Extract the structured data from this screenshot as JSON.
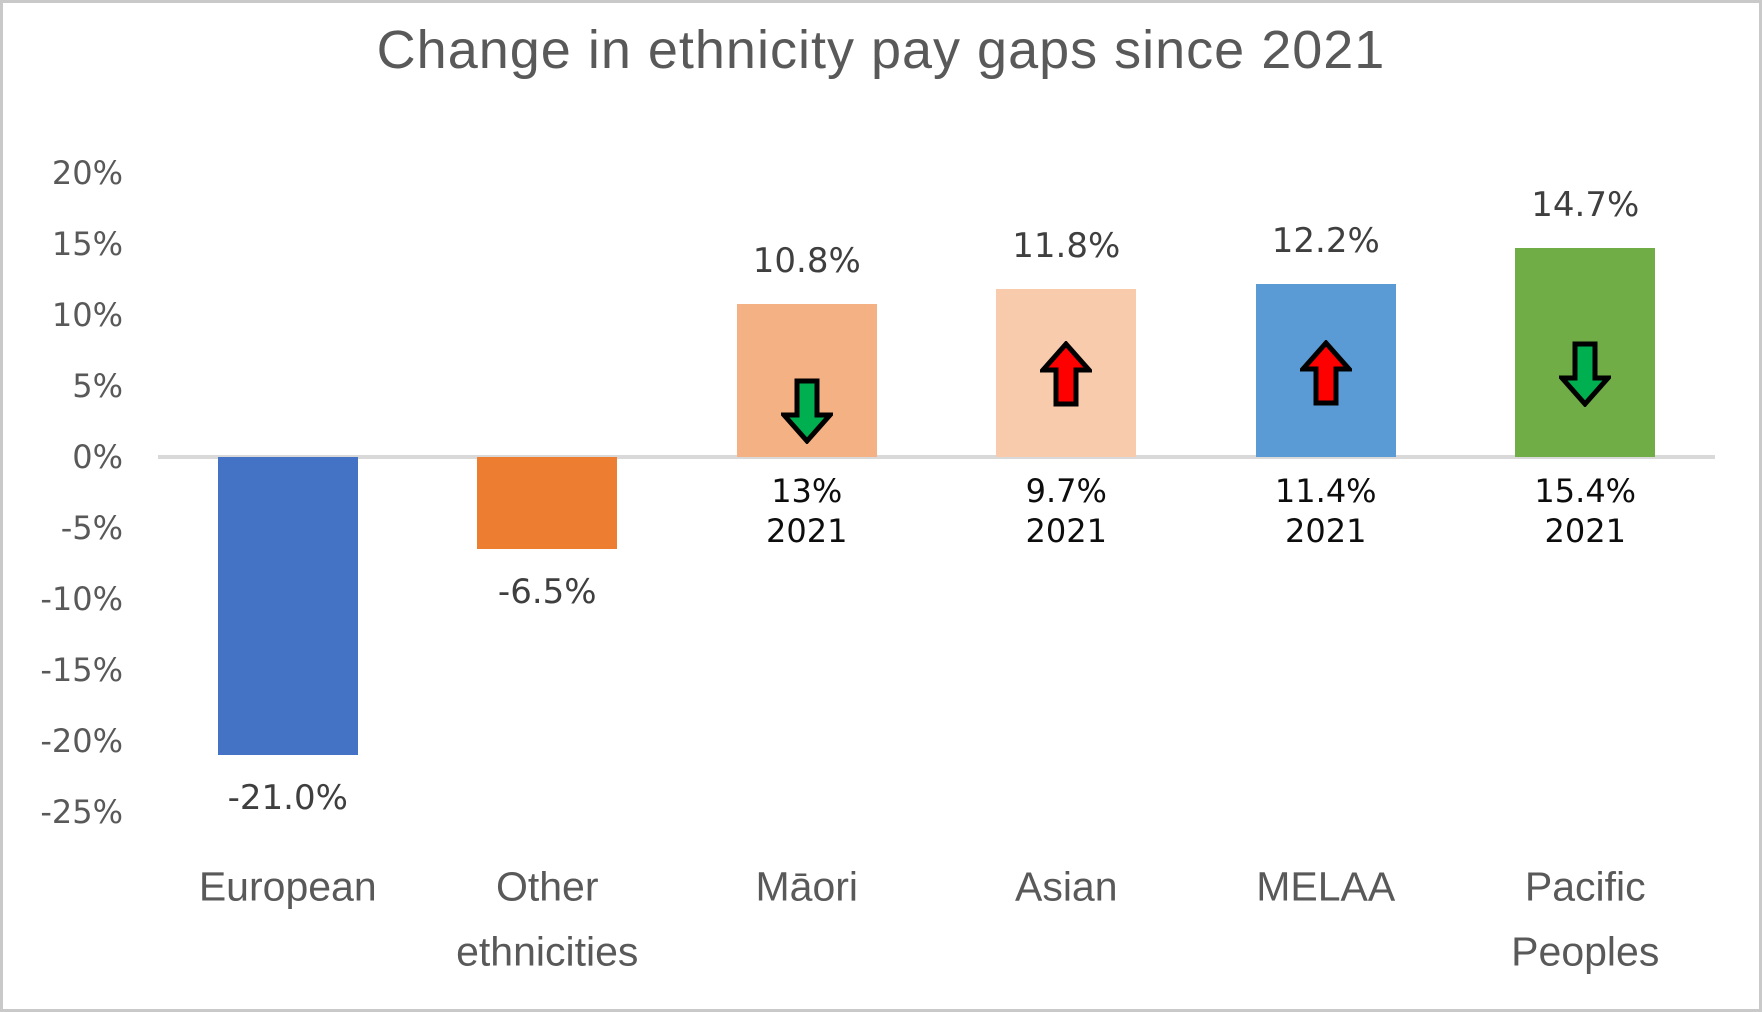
{
  "chart_data": {
    "type": "bar",
    "title": "Change in ethnicity pay gaps since 2021",
    "xlabel": "",
    "ylabel": "",
    "ylim": [
      -25,
      20
    ],
    "grid": false,
    "legend": "none",
    "ytick_labels": [
      "20%",
      "15%",
      "10%",
      "5%",
      "0%",
      "-5%",
      "-10%",
      "-15%",
      "-20%",
      "-25%"
    ],
    "ytick_values": [
      20,
      15,
      10,
      5,
      0,
      -5,
      -10,
      -15,
      -20,
      -25
    ],
    "categories": [
      "European",
      "Other ethnicities",
      "Māori",
      "Asian",
      "MELAA",
      "Pacific Peoples"
    ],
    "values": [
      -21.0,
      -6.5,
      10.8,
      11.8,
      12.2,
      14.7
    ],
    "baseline_2021_values": [
      null,
      null,
      13,
      9.7,
      11.4,
      15.4
    ],
    "bars": [
      {
        "category_lines": [
          "European"
        ],
        "value": -21.0,
        "value_label": "-21.0%",
        "color": "#4472C4"
      },
      {
        "category_lines": [
          "Other",
          "ethnicities"
        ],
        "value": -6.5,
        "value_label": "-6.5%",
        "color": "#ED7D31"
      },
      {
        "category_lines": [
          "Māori"
        ],
        "value": 10.8,
        "value_label": "10.8%",
        "color": "#F4B183",
        "prior_label": "13%",
        "prior_year": "2021",
        "arrow": {
          "direction": "down",
          "fill": "#00B050",
          "outline": "#000000"
        }
      },
      {
        "category_lines": [
          "Asian"
        ],
        "value": 11.8,
        "value_label": "11.8%",
        "color": "#F8CBAD",
        "prior_label": "9.7%",
        "prior_year": "2021",
        "arrow": {
          "direction": "up",
          "fill": "#FF0000",
          "outline": "#000000"
        }
      },
      {
        "category_lines": [
          "MELAA"
        ],
        "value": 12.2,
        "value_label": "12.2%",
        "color": "#5B9BD5",
        "prior_label": "11.4%",
        "prior_year": "2021",
        "arrow": {
          "direction": "up",
          "fill": "#FF0000",
          "outline": "#000000"
        }
      },
      {
        "category_lines": [
          "Pacific",
          "Peoples"
        ],
        "value": 14.7,
        "value_label": "14.7%",
        "color": "#70AD47",
        "prior_label": "15.4%",
        "prior_year": "2021",
        "arrow": {
          "direction": "down",
          "fill": "#00B050",
          "outline": "#000000"
        }
      }
    ],
    "colors": {
      "title_text": "#595959",
      "axis_text": "#595959",
      "value_text": "#3f3f3f",
      "baseline_text": "#0d0d0d",
      "axis_line": "#d9d9d9",
      "background": "#ffffff",
      "border": "#c9c9c9"
    }
  }
}
